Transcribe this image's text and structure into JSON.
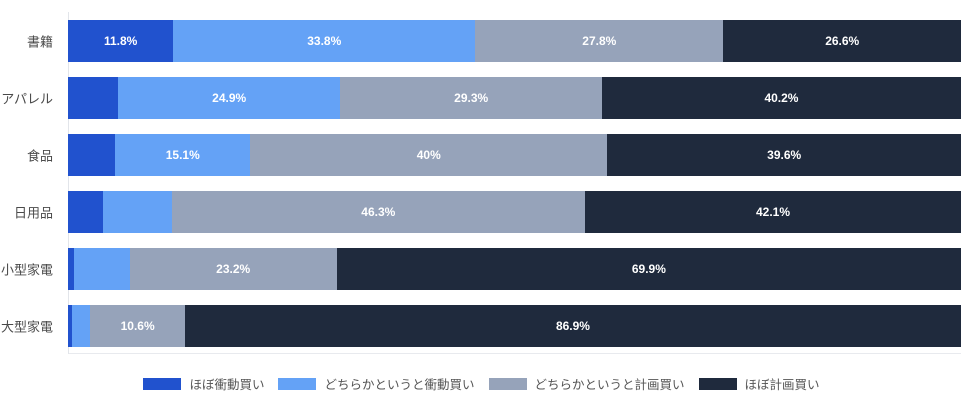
{
  "chart": {
    "background": "#ffffff",
    "axis_line_color": "#e2e5ea",
    "category_label_color": "#4a4a4a",
    "value_label_color": "#ffffff",
    "legend_text_color": "#555555"
  },
  "chart_data": {
    "type": "bar",
    "orientation": "horizontal",
    "stacked": true,
    "units": "%",
    "xlim": [
      0,
      100
    ],
    "grid": false,
    "title": "",
    "xlabel": "",
    "ylabel": "",
    "legend_position": "bottom",
    "categories": [
      "書籍",
      "アパレル",
      "食品",
      "日用品",
      "小型家電",
      "大型家電"
    ],
    "series": [
      {
        "name": "ほぼ衝動買い",
        "color": "#2152ce",
        "values": [
          11.8,
          5.6,
          5.3,
          3.9,
          0.7,
          0.4
        ],
        "labels": [
          "11.8%",
          "",
          "",
          "",
          "",
          ""
        ]
      },
      {
        "name": "どちらかというと衝動買い",
        "color": "#64a2f6",
        "values": [
          33.8,
          24.9,
          15.1,
          7.7,
          6.2,
          2.1
        ],
        "labels": [
          "33.8%",
          "24.9%",
          "15.1%",
          "",
          "",
          ""
        ]
      },
      {
        "name": "どちらかというと計画買い",
        "color": "#96a3ba",
        "values": [
          27.8,
          29.3,
          40,
          46.3,
          23.2,
          10.6
        ],
        "labels": [
          "27.8%",
          "29.3%",
          "40%",
          "46.3%",
          "23.2%",
          "10.6%"
        ]
      },
      {
        "name": "ほぼ計画買い",
        "color": "#1f2a3d",
        "values": [
          26.6,
          40.2,
          39.6,
          42.1,
          69.9,
          86.9
        ],
        "labels": [
          "26.6%",
          "40.2%",
          "39.6%",
          "42.1%",
          "69.9%",
          "86.9%"
        ]
      }
    ]
  }
}
